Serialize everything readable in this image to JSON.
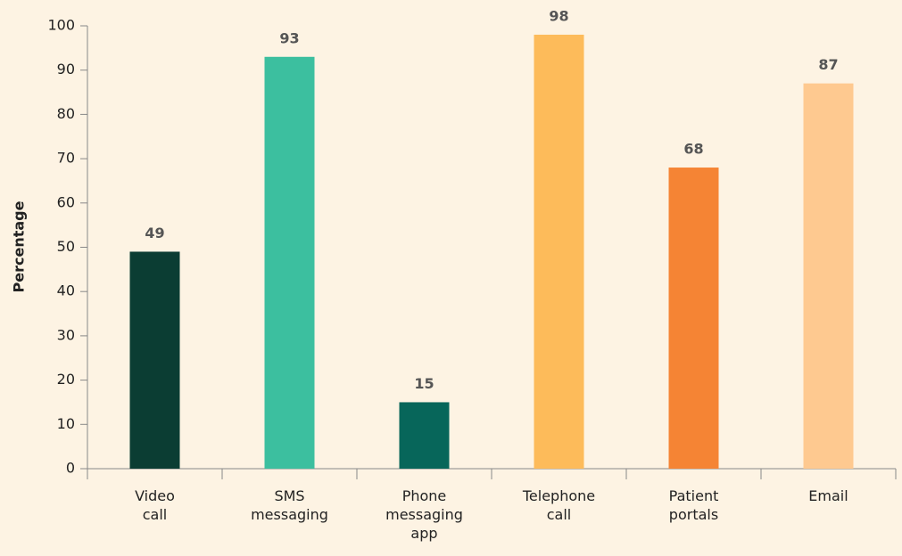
{
  "chart_data": {
    "type": "bar",
    "y_label": "Percentage",
    "categories": [
      "Video call",
      "SMS messaging",
      "Phone messaging app",
      "Telephone call",
      "Patient portals",
      "Email"
    ],
    "values": [
      49,
      93,
      15,
      98,
      68,
      87
    ],
    "colors": [
      "#0b3d33",
      "#3cbf9f",
      "#07665a",
      "#fdbb5a",
      "#f58434",
      "#fec990"
    ],
    "ylim": [
      0,
      100
    ],
    "yticks": [
      0,
      10,
      20,
      30,
      40,
      50,
      60,
      70,
      80,
      90,
      100
    ],
    "value_labels_shown": true,
    "grid": false
  }
}
